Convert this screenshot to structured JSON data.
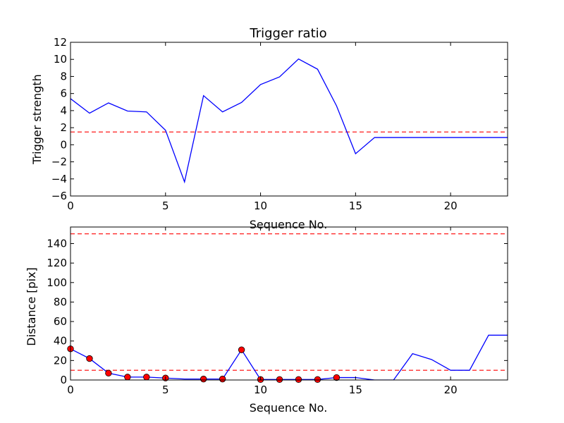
{
  "chart_data": [
    {
      "type": "line",
      "title": "Trigger ratio",
      "xlabel": "Sequence No.",
      "ylabel": "Trigger strength",
      "xlim": [
        0,
        23
      ],
      "ylim": [
        -6,
        12
      ],
      "xticks": [
        0,
        5,
        10,
        15,
        20
      ],
      "yticks": [
        -6,
        -4,
        -2,
        0,
        2,
        4,
        6,
        8,
        10,
        12
      ],
      "grid": false,
      "series": [
        {
          "color": "#0000ff",
          "x": [
            0,
            1,
            2,
            3,
            4,
            5,
            6,
            7,
            8,
            9,
            10,
            11,
            12,
            13,
            14,
            15,
            16,
            17,
            18,
            19,
            20,
            21,
            22,
            23
          ],
          "y": [
            5.4,
            3.7,
            4.9,
            3.95,
            3.85,
            1.7,
            -4.35,
            5.75,
            3.85,
            4.95,
            7.05,
            7.95,
            10.05,
            8.85,
            4.55,
            -1.05,
            0.85,
            0.85,
            0.85,
            0.85,
            0.85,
            0.85,
            0.85,
            0.85
          ]
        }
      ],
      "hlines": [
        {
          "y": 1.5,
          "color": "#ff0000",
          "style": "dashed"
        }
      ]
    },
    {
      "type": "line",
      "title": "",
      "xlabel": "Sequence No.",
      "ylabel": "Distance [pix]",
      "xlim": [
        0,
        23
      ],
      "ylim": [
        0,
        157
      ],
      "xticks": [
        0,
        5,
        10,
        15,
        20
      ],
      "yticks": [
        0,
        20,
        40,
        60,
        80,
        100,
        120,
        140
      ],
      "grid": false,
      "series": [
        {
          "color": "#0000ff",
          "x": [
            0,
            1,
            2,
            3,
            4,
            5,
            6,
            7,
            8,
            9,
            10,
            11,
            12,
            13,
            14,
            15,
            16,
            17,
            18,
            19,
            20,
            21,
            22,
            23
          ],
          "y": [
            32,
            22,
            7,
            3,
            3,
            2,
            1,
            1,
            1,
            31,
            0.5,
            0.5,
            0.5,
            0.5,
            2.5,
            2.5,
            0,
            0,
            27,
            21,
            10,
            10,
            46,
            46
          ]
        }
      ],
      "markers": {
        "color": "#ff0000",
        "x": [
          0,
          1,
          2,
          3,
          4,
          5,
          7,
          8,
          9,
          10,
          11,
          12,
          13,
          14
        ],
        "y": [
          32,
          22,
          7,
          3,
          3,
          2,
          1,
          1,
          31,
          0.5,
          0.5,
          0.5,
          0.5,
          2.5
        ]
      },
      "hlines": [
        {
          "y": 150,
          "color": "#ff0000",
          "style": "dashed"
        },
        {
          "y": 10,
          "color": "#ff0000",
          "style": "dashed"
        }
      ]
    }
  ]
}
